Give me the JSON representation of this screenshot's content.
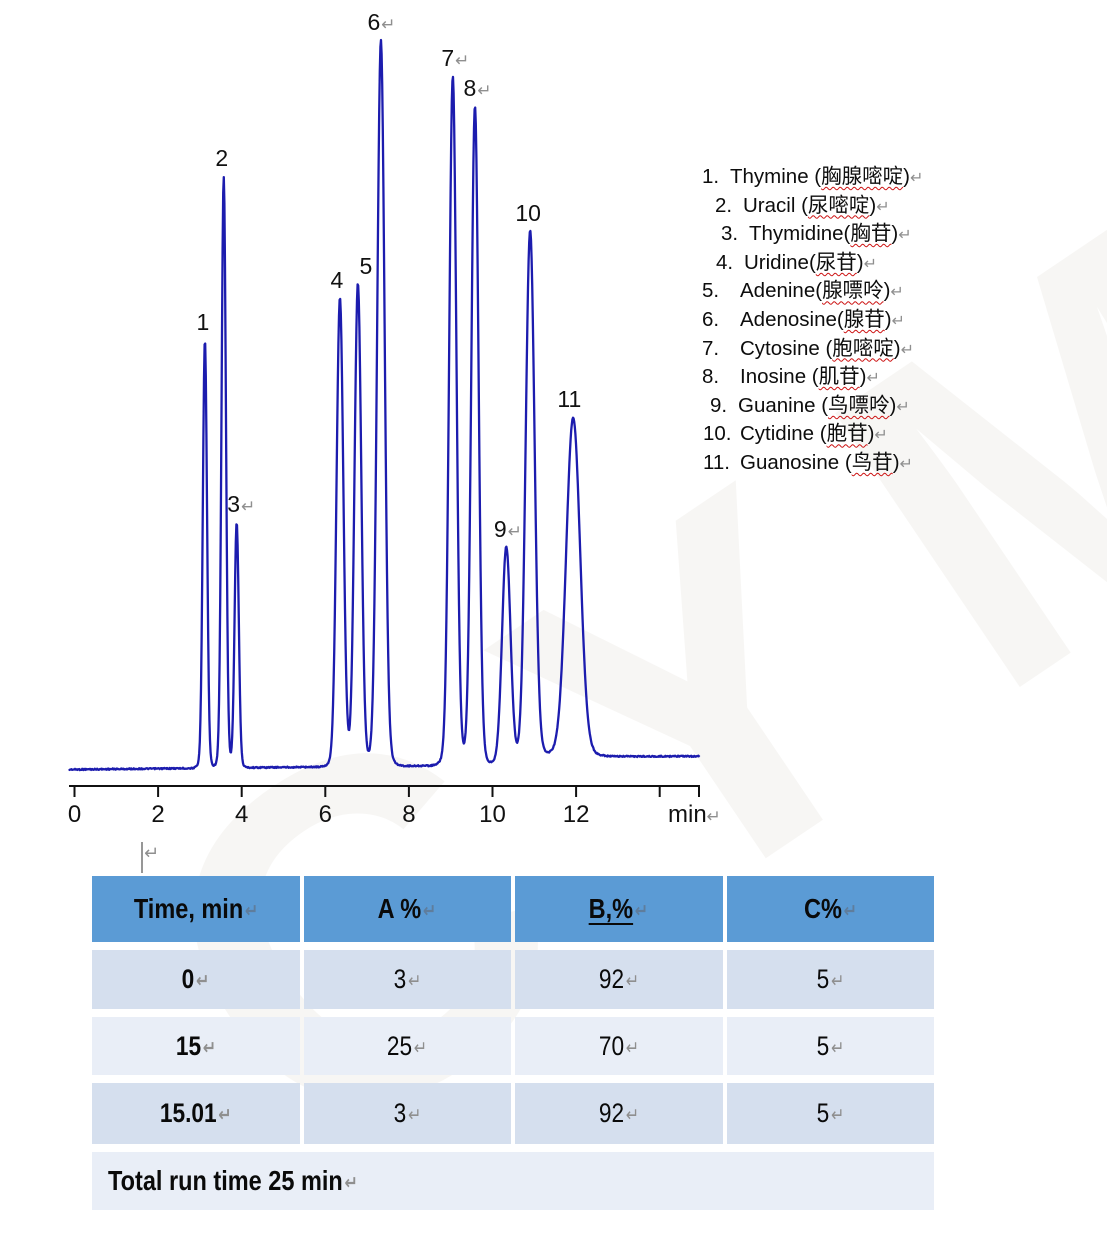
{
  "watermark": "CYM",
  "chart_data": {
    "type": "line",
    "title": "",
    "xlabel": "min",
    "x_ticks": [
      "0",
      "2",
      "4",
      "6",
      "8",
      "10",
      "12"
    ],
    "x_tick_values": [
      0,
      2,
      4,
      6,
      8,
      10,
      12
    ],
    "x_minor_tick": 14,
    "x_max": 15,
    "trace_color": "#1c1cae",
    "peaks": [
      {
        "label": "1",
        "time_min": 3.12,
        "height_rel": 59.0,
        "sigma_min": 0.05,
        "return_mark": false
      },
      {
        "label": "2",
        "time_min": 3.57,
        "height_rel": 81.5,
        "sigma_min": 0.052,
        "return_mark": false
      },
      {
        "label": "3",
        "time_min": 3.88,
        "height_rel": 33.8,
        "sigma_min": 0.05,
        "return_mark": true
      },
      {
        "label": "4",
        "time_min": 6.35,
        "height_rel": 64.5,
        "sigma_min": 0.08,
        "return_mark": false
      },
      {
        "label": "5",
        "time_min": 6.78,
        "height_rel": 66.5,
        "sigma_min": 0.08,
        "return_mark": false
      },
      {
        "label": "6",
        "time_min": 7.33,
        "height_rel": 100.0,
        "sigma_min": 0.088,
        "return_mark": true
      },
      {
        "label": "7",
        "time_min": 9.05,
        "height_rel": 94.9,
        "sigma_min": 0.085,
        "return_mark": true
      },
      {
        "label": "8",
        "time_min": 9.58,
        "height_rel": 90.8,
        "sigma_min": 0.085,
        "return_mark": true
      },
      {
        "label": "9",
        "time_min": 10.33,
        "height_rel": 30.0,
        "sigma_min": 0.1,
        "return_mark": true
      },
      {
        "label": "10",
        "time_min": 10.9,
        "height_rel": 73.1,
        "sigma_min": 0.105,
        "return_mark": false
      },
      {
        "label": "11",
        "time_min": 11.93,
        "height_rel": 46.7,
        "sigma_min": 0.165,
        "return_mark": false
      }
    ]
  },
  "legend": {
    "items": [
      {
        "num": "1.",
        "en": "Thymine (",
        "zh": "胸腺嘧啶",
        "end": ")"
      },
      {
        "num": "2.",
        "en": "Uracil (",
        "zh": "尿嘧啶",
        "end": ")"
      },
      {
        "num": "3.",
        "en": "Thymidine(",
        "zh": "胸苷",
        "end": ")"
      },
      {
        "num": "4.",
        "en": "Uridine(",
        "zh": "尿苷",
        "end": ")"
      },
      {
        "num": "5.",
        "en": "Adenine(",
        "zh": "腺嘌呤",
        "end": ")"
      },
      {
        "num": "6.",
        "en": "Adenosine(",
        "zh": "腺苷",
        "end": ")"
      },
      {
        "num": "7.",
        "en": "Cytosine (",
        "zh": "胞嘧啶",
        "end": ")"
      },
      {
        "num": "8.",
        "en": "Inosine (",
        "zh": "肌苷",
        "end": ")"
      },
      {
        "num": "9.",
        "en": "Guanine (",
        "zh": "鸟嘌呤",
        "end": ")"
      },
      {
        "num": "10.",
        "en": "Cytidine (",
        "zh": "胞苷",
        "end": ")"
      },
      {
        "num": "11.",
        "en": "Guanosine (",
        "zh": "鸟苷",
        "end": ")"
      }
    ]
  },
  "return_mark": "↵",
  "table": {
    "header_bg": "#5b9bd5",
    "row_bg_dark": "#d5dfee",
    "row_bg_light": "#e9eef7",
    "headers": [
      {
        "label": "Time, min",
        "underline": false
      },
      {
        "label": "A %",
        "underline": false
      },
      {
        "label": "B,%",
        "underline": true
      },
      {
        "label": "C%",
        "underline": false
      }
    ],
    "rows": [
      [
        "0",
        "3",
        "92",
        "5"
      ],
      [
        "15",
        "25",
        "70",
        "5"
      ],
      [
        "15.01",
        "3",
        "92",
        "5"
      ]
    ],
    "footer": "Total run time 25 min"
  }
}
